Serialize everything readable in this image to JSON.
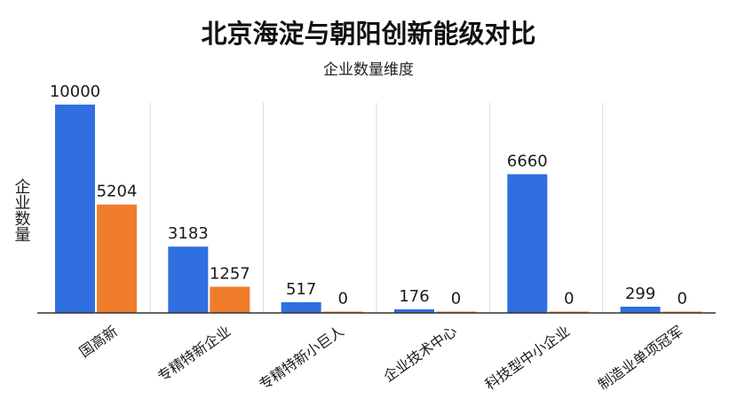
{
  "chart_data": {
    "type": "bar",
    "title": "北京海淀与朝阳创新能级对比",
    "subtitle": "企业数量维度",
    "xlabel": "",
    "ylabel": "企业数量",
    "ylim": [
      0,
      10000
    ],
    "grid": false,
    "legend": "none",
    "categories": [
      "国高新",
      "专精特新企业",
      "专精特新小巨人",
      "企业技术中心",
      "科技型中小企业",
      "制造业单项冠军"
    ],
    "series": [
      {
        "values": [
          10000,
          3183,
          517,
          176,
          6660,
          299
        ],
        "color": "#2f6fe0"
      },
      {
        "values": [
          5204,
          1257,
          0,
          0,
          0,
          0
        ],
        "color": "#f07d2c"
      }
    ],
    "value_labels": [
      [
        "10000",
        "3183",
        "517",
        "176",
        "6660",
        "299"
      ],
      [
        "5204",
        "1257",
        "0",
        "0",
        "0",
        "0"
      ]
    ]
  }
}
